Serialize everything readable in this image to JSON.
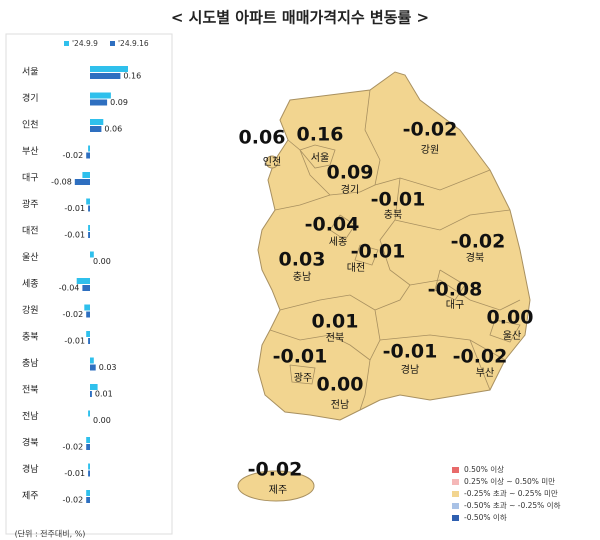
{
  "title": "< 시도별 아파트 매매가격지수 변동률 >",
  "chart_data": {
    "type": "bar",
    "orientation": "horizontal",
    "categories": [
      "서울",
      "경기",
      "인천",
      "부산",
      "대구",
      "광주",
      "대전",
      "울산",
      "세종",
      "강원",
      "충북",
      "충남",
      "전북",
      "전남",
      "경북",
      "경남",
      "제주"
    ],
    "series": [
      {
        "name": "'24.9.9",
        "color": "#2fc0ec",
        "values": [
          0.2,
          0.11,
          0.07,
          -0.01,
          -0.04,
          -0.02,
          -0.01,
          0.02,
          -0.07,
          -0.03,
          -0.02,
          0.02,
          0.04,
          -0.01,
          -0.02,
          -0.01,
          -0.02
        ]
      },
      {
        "name": "'24.9.16",
        "color": "#2e6fc0",
        "values": [
          0.16,
          0.09,
          0.06,
          -0.02,
          -0.08,
          -0.01,
          -0.01,
          0,
          -0.04,
          -0.02,
          -0.01,
          0.03,
          0.01,
          0,
          -0.02,
          -0.01,
          -0.02
        ],
        "value_labels": [
          "0.16",
          "0.09",
          "0.06",
          "-0.02",
          "-0.08",
          "-0.01",
          "-0.01",
          "0.00",
          "-0.04",
          "-0.02",
          "-0.01",
          "0.03",
          "0.01",
          "0.00",
          "-0.02",
          "-0.01",
          "-0.02"
        ]
      }
    ],
    "xlim": [
      -0.1,
      0.2
    ]
  },
  "unit_note": "(단위 : 전주대비, %)",
  "map": {
    "fill": "#f2d590",
    "regions": [
      {
        "name": "인천",
        "value": "0.06"
      },
      {
        "name": "서울",
        "value": "0.16"
      },
      {
        "name": "경기",
        "value": "0.09"
      },
      {
        "name": "강원",
        "value": "-0.02"
      },
      {
        "name": "충북",
        "value": "-0.01"
      },
      {
        "name": "세종",
        "value": "-0.04"
      },
      {
        "name": "대전",
        "value": "-0.01"
      },
      {
        "name": "충남",
        "value": "0.03"
      },
      {
        "name": "경북",
        "value": "-0.02"
      },
      {
        "name": "대구",
        "value": "-0.08"
      },
      {
        "name": "울산",
        "value": "0.00"
      },
      {
        "name": "전북",
        "value": "0.01"
      },
      {
        "name": "광주",
        "value": "-0.01"
      },
      {
        "name": "전남",
        "value": "0.00"
      },
      {
        "name": "경남",
        "value": "-0.01"
      },
      {
        "name": "부산",
        "value": "-0.02"
      },
      {
        "name": "제주",
        "value": "-0.02"
      }
    ],
    "legend": [
      {
        "label": "0.50% 이상",
        "color": "#e86a6a"
      },
      {
        "label": "0.25% 이상 ~ 0.50% 미만",
        "color": "#f5b8b8"
      },
      {
        "label": "-0.25% 초과 ~ 0.25% 미만",
        "color": "#f2d590"
      },
      {
        "label": "-0.50% 초과 ~ -0.25% 이하",
        "color": "#a9c2e6"
      },
      {
        "label": "-0.50% 이하",
        "color": "#2e5fb0"
      }
    ]
  }
}
